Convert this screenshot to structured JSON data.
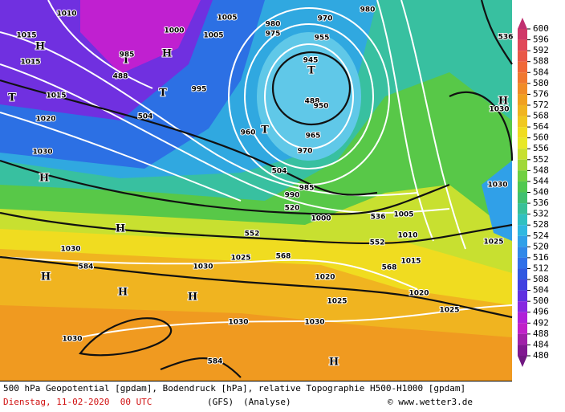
{
  "map": {
    "labels": [
      "1010",
      "1015",
      "1015",
      "1015",
      "1020",
      "1030",
      "H",
      "H",
      "H",
      "H",
      "H",
      "H",
      "H",
      "H",
      "T",
      "T",
      "T",
      "T",
      "T",
      "H",
      "488",
      "504",
      "488",
      "504",
      "520",
      "536",
      "552",
      "552",
      "568",
      "568",
      "584",
      "584",
      "536",
      "1005",
      "1000",
      "1005",
      "985",
      "995",
      "960",
      "980",
      "975",
      "970",
      "955",
      "945",
      "950",
      "965",
      "970",
      "980",
      "1030",
      "1030",
      "1025",
      "1030",
      "1030",
      "1025",
      "1030",
      "1020",
      "1010",
      "1005",
      "1015",
      "1020",
      "1025",
      "1025",
      "1030",
      "1030",
      "1000",
      "990",
      "985"
    ]
  },
  "colorbar": {
    "ticks": [
      600,
      596,
      592,
      588,
      584,
      580,
      576,
      572,
      568,
      564,
      560,
      556,
      552,
      548,
      544,
      540,
      536,
      532,
      528,
      524,
      520,
      516,
      512,
      508,
      504,
      500,
      496,
      492,
      488,
      484,
      480
    ],
    "colors": [
      "#d03868",
      "#e04858",
      "#e85848",
      "#f06838",
      "#f07830",
      "#f08c28",
      "#f0a020",
      "#f0b420",
      "#f0c820",
      "#f0dc20",
      "#e8e828",
      "#c8e030",
      "#a0d838",
      "#70d040",
      "#50c850",
      "#40c070",
      "#38c098",
      "#30c0c0",
      "#30b8e0",
      "#30a0e8",
      "#3088e8",
      "#3070e8",
      "#3058e0",
      "#4040e0",
      "#6030e0",
      "#8828e0",
      "#b020d8",
      "#c020c8",
      "#a020a8",
      "#801890"
    ]
  },
  "footer": {
    "description": "500 hPa Geopotential [gpdam], Bodendruck [hPa], relative Topographie H500-H1000 [gpdam]",
    "date": "Dienstag, 11-02-2020  00 UTC",
    "model": "(GFS)",
    "run": "(Analyse)",
    "credit": "© www.wetter3.de"
  }
}
